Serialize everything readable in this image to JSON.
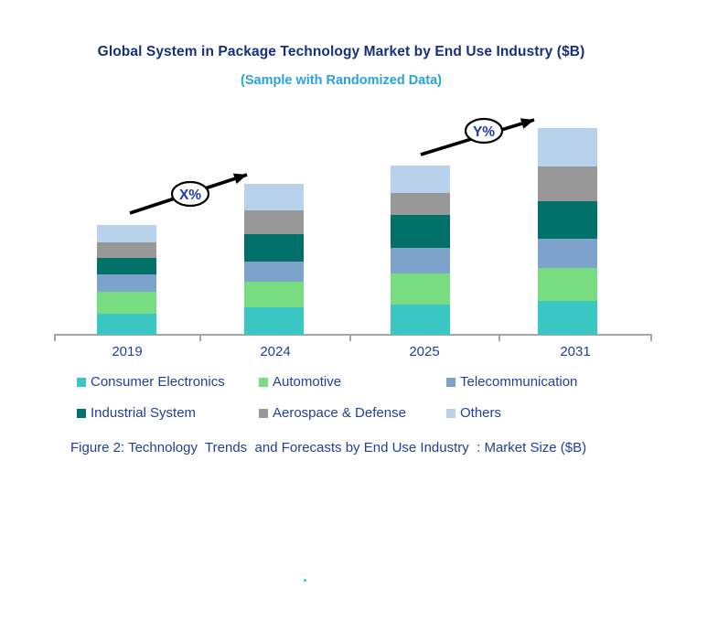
{
  "page": {
    "title": "Global System in Package Technology Market by End Use Industry ($B)",
    "subtitle": "(Sample with Randomized Data)",
    "caption": "Figure 2: Technology  Trends  and Forecasts by End Use Industry  : Market Size ($B)"
  },
  "growth_annotations": [
    {
      "label": "X%"
    },
    {
      "label": "Y%"
    }
  ],
  "colors": {
    "title_text": "#16307E",
    "subtitle_text": "#2AA2DD",
    "body_text": "#21409A",
    "annotation_text": "#203DB0",
    "annotation_outline": "#000000",
    "axis_line": "#A6A6A6",
    "stray_dot": "#45C8CF"
  },
  "chart_data": {
    "type": "bar",
    "stacked": true,
    "title": "Global System in Package Technology Market by End Use Industry ($B)",
    "categories": [
      "2019",
      "2024",
      "2025",
      "2031"
    ],
    "series": [
      {
        "name": "Consumer Electronics",
        "color": "#3AC6C3",
        "values": [
          23,
          30,
          33,
          37
        ]
      },
      {
        "name": "Automotive",
        "color": "#78DD80",
        "values": [
          24,
          28,
          34,
          36
        ]
      },
      {
        "name": "Telecommunication",
        "color": "#7DA2CC",
        "values": [
          19,
          22,
          28,
          32
        ]
      },
      {
        "name": "Industrial System",
        "color": "#027169",
        "values": [
          18,
          30,
          36,
          41
        ]
      },
      {
        "name": "Aerospace & Defense",
        "color": "#989898",
        "values": [
          17,
          26,
          24,
          38
        ]
      },
      {
        "name": "Others",
        "color": "#B9D2EC",
        "values": [
          19,
          29,
          30,
          42
        ]
      }
    ],
    "totals": [
      120,
      165,
      185,
      226
    ],
    "xlabel": "",
    "ylabel": "",
    "y_axis_visible": false,
    "gridlines": false,
    "legend_position": "bottom",
    "value_note": "Relative units estimated from bar heights; chart shows no value axis (sample with randomized data)"
  }
}
